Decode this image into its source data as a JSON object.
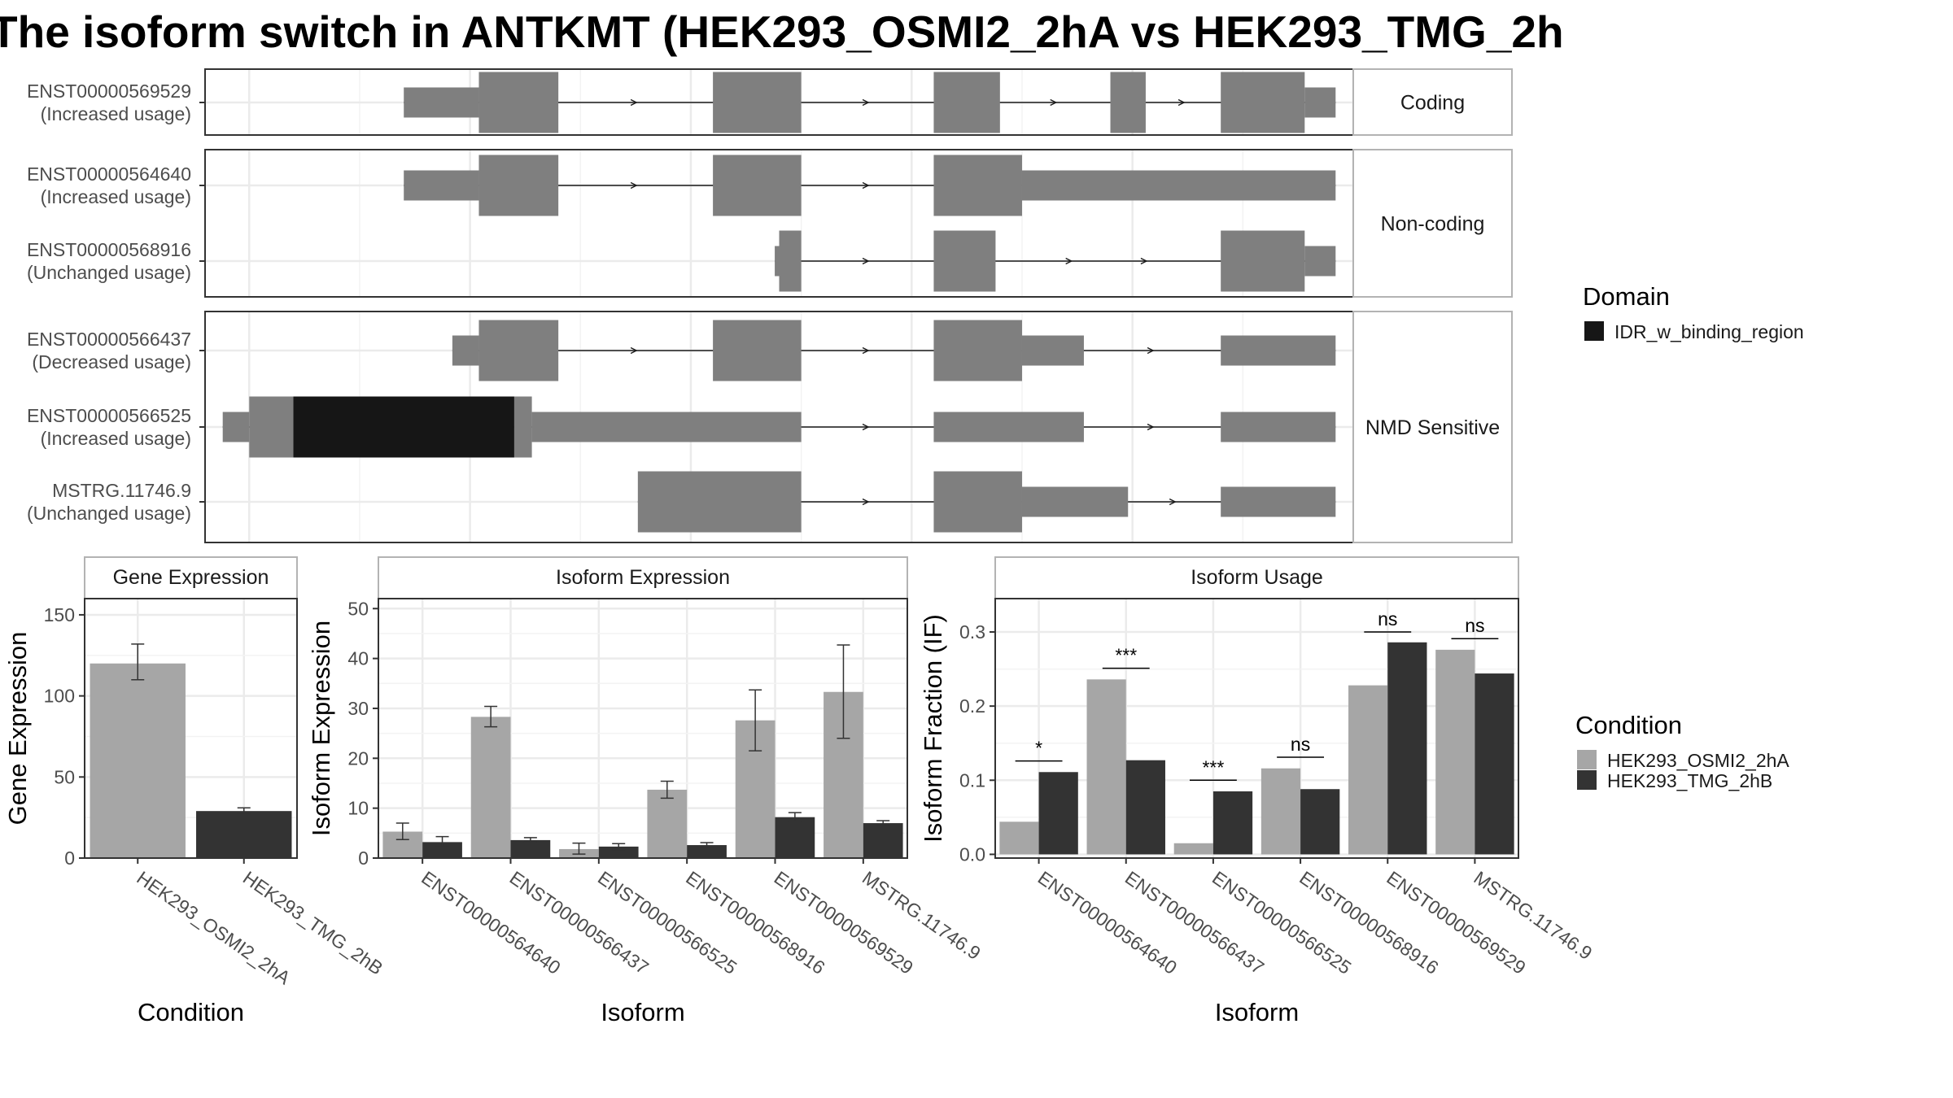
{
  "title": "The isoform switch in ANTKMT (HEK293_OSMI2_2hA vs HEK293_TMG_2h",
  "colors": {
    "exon": "#7f7f7f",
    "domain_idr": "#161616",
    "cond_a": "#a6a6a6",
    "cond_b": "#333333",
    "grid": "#ebebeb",
    "strip_bg": "#ffffff",
    "panel_border": "#333333"
  },
  "legends": {
    "domain": {
      "title": "Domain",
      "items": [
        {
          "label": "IDR_w_binding_region",
          "color": "#161616"
        }
      ]
    },
    "condition": {
      "title": "Condition",
      "items": [
        {
          "label": "HEK293_OSMI2_2hA",
          "color": "#a6a6a6"
        },
        {
          "label": "HEK293_TMG_2hB",
          "color": "#333333"
        }
      ]
    }
  },
  "chart_data": [
    {
      "type": "gene-structure",
      "groups": [
        {
          "label": "Coding",
          "isoforms": [
            {
              "id": "ENST00000569529",
              "usage": "(Increased usage)",
              "exons": [
                [
                  0.35,
                  0.52,
                  "t"
                ],
                [
                  0.52,
                  0.7,
                  "c"
                ],
                [
                  1.05,
                  1.25,
                  "c"
                ],
                [
                  1.55,
                  1.7,
                  "c"
                ],
                [
                  1.95,
                  2.03,
                  "c"
                ],
                [
                  2.2,
                  2.39,
                  "c"
                ],
                [
                  2.39,
                  2.46,
                  "t"
                ]
              ],
              "domains": []
            }
          ]
        },
        {
          "label": "Non-coding",
          "isoforms": [
            {
              "id": "ENST00000564640",
              "usage": "(Increased usage)",
              "exons": [
                [
                  0.35,
                  0.52,
                  "t"
                ],
                [
                  0.52,
                  0.7,
                  "c"
                ],
                [
                  1.05,
                  1.25,
                  "c"
                ],
                [
                  1.55,
                  1.75,
                  "c"
                ],
                [
                  1.75,
                  2.46,
                  "t"
                ]
              ],
              "domains": []
            },
            {
              "id": "ENST00000568916",
              "usage": "(Unchanged usage)",
              "exons": [
                [
                  1.19,
                  1.2,
                  "t"
                ],
                [
                  1.2,
                  1.25,
                  "c"
                ],
                [
                  1.55,
                  1.69,
                  "c"
                ],
                [
                  2.2,
                  2.39,
                  "c"
                ],
                [
                  2.39,
                  2.46,
                  "t"
                ]
              ],
              "domains": []
            }
          ]
        },
        {
          "label": "NMD Sensitive",
          "isoforms": [
            {
              "id": "ENST00000566437",
              "usage": "(Decreased usage)",
              "exons": [
                [
                  0.46,
                  0.52,
                  "t"
                ],
                [
                  0.52,
                  0.7,
                  "c"
                ],
                [
                  1.05,
                  1.25,
                  "c"
                ],
                [
                  1.55,
                  1.75,
                  "c"
                ],
                [
                  1.75,
                  1.89,
                  "t"
                ],
                [
                  2.2,
                  2.46,
                  "t"
                ]
              ],
              "domains": []
            },
            {
              "id": "ENST00000566525",
              "usage": "(Increased usage)",
              "exons": [
                [
                  -0.06,
                  0.0,
                  "t"
                ],
                [
                  0.0,
                  0.1,
                  "c"
                ],
                [
                  0.1,
                  0.6,
                  "c"
                ],
                [
                  0.6,
                  0.64,
                  "c"
                ],
                [
                  0.64,
                  1.25,
                  "t"
                ],
                [
                  1.55,
                  1.89,
                  "t"
                ],
                [
                  2.2,
                  2.46,
                  "t"
                ]
              ],
              "domains": [
                [
                  0.1,
                  0.6
                ]
              ]
            },
            {
              "id": "MSTRG.11746.9",
              "usage": "(Unchanged usage)",
              "exons": [
                [
                  0.88,
                  1.25,
                  "c"
                ],
                [
                  1.55,
                  1.75,
                  "c"
                ],
                [
                  1.75,
                  1.99,
                  "t"
                ],
                [
                  2.2,
                  2.46,
                  "t"
                ]
              ],
              "domains": []
            }
          ]
        }
      ]
    },
    {
      "type": "bar",
      "title": "Gene Expression",
      "xlabel": "Condition",
      "ylabel": "Gene Expression",
      "ylim": [
        0,
        160
      ],
      "yticks": [
        "0",
        "50",
        "100",
        "150"
      ],
      "categories": [
        "HEK293_OSMI2_2hA",
        "HEK293_TMG_2hB"
      ],
      "values": [
        120,
        29
      ],
      "err_low": [
        110,
        27.5
      ],
      "err_high": [
        132,
        31
      ]
    },
    {
      "type": "bar",
      "title": "Isoform Expression",
      "xlabel": "Isoform",
      "ylabel": "Isoform Expression",
      "ylim": [
        0,
        52
      ],
      "yticks": [
        "0",
        "10",
        "20",
        "30",
        "40",
        "50"
      ],
      "categories": [
        "ENST00000564640",
        "ENST00000566437",
        "ENST00000566525",
        "ENST00000568916",
        "ENST00000569529",
        "MSTRG.11746.9"
      ],
      "series": [
        {
          "name": "HEK293_OSMI2_2hA",
          "values": [
            5.3,
            28.3,
            1.8,
            13.7,
            27.6,
            33.3
          ],
          "err_low": [
            3.7,
            26.3,
            0.8,
            12.0,
            21.5,
            24.0
          ],
          "err_high": [
            7.0,
            30.4,
            3.0,
            15.4,
            33.7,
            42.7
          ]
        },
        {
          "name": "HEK293_TMG_2hB",
          "values": [
            3.2,
            3.6,
            2.3,
            2.6,
            8.2,
            7.0
          ],
          "err_low": [
            2.3,
            3.2,
            1.7,
            2.1,
            7.3,
            6.5
          ],
          "err_high": [
            4.3,
            4.1,
            2.9,
            3.1,
            9.1,
            7.5
          ]
        }
      ]
    },
    {
      "type": "bar",
      "title": "Isoform Usage",
      "xlabel": "Isoform",
      "ylabel": "Isoform Fraction (IF)",
      "ylim": [
        -0.005,
        0.345
      ],
      "yticks": [
        "0.0",
        "0.1",
        "0.2",
        "0.3"
      ],
      "categories": [
        "ENST00000564640",
        "ENST00000566437",
        "ENST00000566525",
        "ENST00000568916",
        "ENST00000569529",
        "MSTRG.11746.9"
      ],
      "series": [
        {
          "name": "HEK293_OSMI2_2hA",
          "values": [
            0.044,
            0.236,
            0.015,
            0.116,
            0.228,
            0.276
          ]
        },
        {
          "name": "HEK293_TMG_2hB",
          "values": [
            0.111,
            0.127,
            0.085,
            0.088,
            0.286,
            0.244
          ]
        }
      ],
      "significance": [
        {
          "label": "*",
          "y": 0.126
        },
        {
          "label": "***",
          "y": 0.251
        },
        {
          "label": "***",
          "y": 0.1
        },
        {
          "label": "ns",
          "y": 0.131
        },
        {
          "label": "ns",
          "y": 0.3
        },
        {
          "label": "ns",
          "y": 0.291
        }
      ]
    }
  ]
}
